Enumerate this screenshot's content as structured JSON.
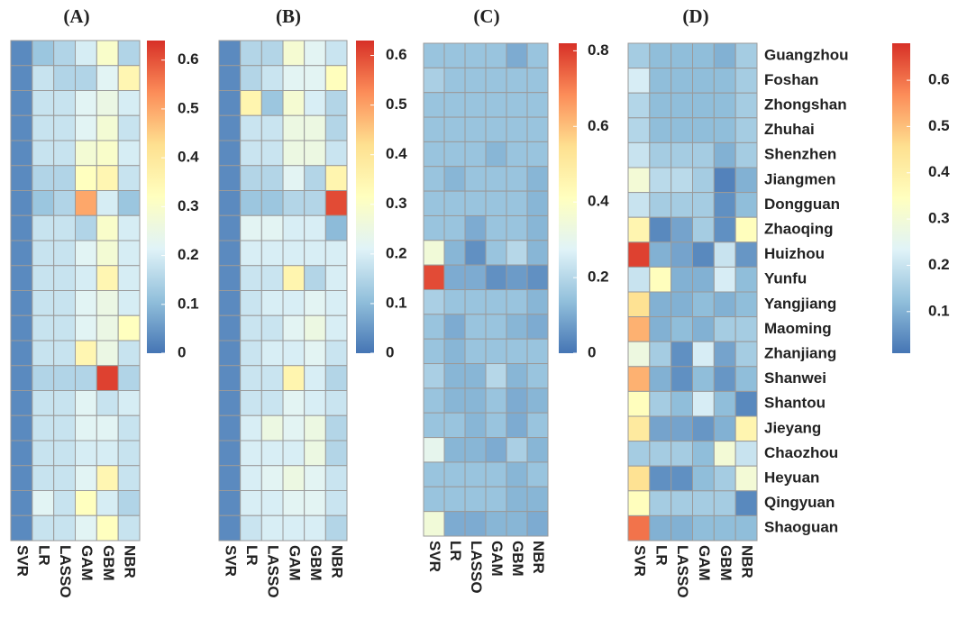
{
  "chart_data": [
    {
      "type": "heatmap",
      "title": "(A)",
      "columns": [
        "SVR",
        "LR",
        "LASSO",
        "GAM",
        "GBM",
        "NBR"
      ],
      "values": [
        [
          0.03,
          0.12,
          0.15,
          0.2,
          0.3,
          0.15
        ],
        [
          0.03,
          0.18,
          0.15,
          0.15,
          0.22,
          0.35
        ],
        [
          0.03,
          0.18,
          0.18,
          0.22,
          0.25,
          0.2
        ],
        [
          0.03,
          0.18,
          0.18,
          0.22,
          0.28,
          0.18
        ],
        [
          0.03,
          0.18,
          0.18,
          0.28,
          0.3,
          0.2
        ],
        [
          0.03,
          0.15,
          0.15,
          0.32,
          0.35,
          0.18
        ],
        [
          0.03,
          0.12,
          0.15,
          0.5,
          0.2,
          0.12
        ],
        [
          0.03,
          0.18,
          0.18,
          0.15,
          0.3,
          0.2
        ],
        [
          0.03,
          0.18,
          0.18,
          0.22,
          0.28,
          0.2
        ],
        [
          0.03,
          0.18,
          0.18,
          0.2,
          0.35,
          0.2
        ],
        [
          0.03,
          0.18,
          0.18,
          0.22,
          0.25,
          0.2
        ],
        [
          0.03,
          0.18,
          0.18,
          0.22,
          0.25,
          0.32
        ],
        [
          0.03,
          0.18,
          0.18,
          0.35,
          0.25,
          0.18
        ],
        [
          0.03,
          0.15,
          0.15,
          0.15,
          0.62,
          0.15
        ],
        [
          0.03,
          0.18,
          0.18,
          0.22,
          0.18,
          0.2
        ],
        [
          0.03,
          0.18,
          0.18,
          0.22,
          0.22,
          0.18
        ],
        [
          0.03,
          0.18,
          0.18,
          0.2,
          0.2,
          0.18
        ],
        [
          0.03,
          0.18,
          0.18,
          0.22,
          0.35,
          0.18
        ],
        [
          0.03,
          0.22,
          0.18,
          0.32,
          0.2,
          0.15
        ],
        [
          0.03,
          0.18,
          0.18,
          0.22,
          0.32,
          0.18
        ]
      ],
      "zlim": [
        0,
        0.64
      ],
      "zticks": [
        0,
        0.1,
        0.2,
        0.3,
        0.4,
        0.5,
        0.6
      ],
      "colormap": [
        "#4575b4",
        "#91bfdb",
        "#e0f3f8",
        "#ffffbf",
        "#fee090",
        "#fc8d59",
        "#d73027"
      ]
    },
    {
      "type": "heatmap",
      "title": "(B)",
      "columns": [
        "SVR",
        "LR",
        "LASSO",
        "GAM",
        "GBM",
        "NBR"
      ],
      "values": [
        [
          0.03,
          0.15,
          0.15,
          0.28,
          0.22,
          0.18
        ],
        [
          0.03,
          0.15,
          0.18,
          0.22,
          0.22,
          0.32
        ],
        [
          0.03,
          0.35,
          0.12,
          0.28,
          0.2,
          0.15
        ],
        [
          0.03,
          0.18,
          0.18,
          0.25,
          0.25,
          0.15
        ],
        [
          0.03,
          0.18,
          0.18,
          0.25,
          0.25,
          0.18
        ],
        [
          0.03,
          0.15,
          0.15,
          0.22,
          0.15,
          0.35
        ],
        [
          0.03,
          0.12,
          0.12,
          0.15,
          0.15,
          0.6
        ],
        [
          0.03,
          0.22,
          0.22,
          0.2,
          0.2,
          0.1
        ],
        [
          0.03,
          0.2,
          0.2,
          0.2,
          0.2,
          0.2
        ],
        [
          0.03,
          0.18,
          0.18,
          0.35,
          0.15,
          0.2
        ],
        [
          0.03,
          0.18,
          0.2,
          0.2,
          0.22,
          0.2
        ],
        [
          0.03,
          0.18,
          0.18,
          0.22,
          0.25,
          0.2
        ],
        [
          0.03,
          0.18,
          0.2,
          0.2,
          0.22,
          0.18
        ],
        [
          0.03,
          0.18,
          0.18,
          0.35,
          0.2,
          0.15
        ],
        [
          0.03,
          0.18,
          0.18,
          0.22,
          0.2,
          0.18
        ],
        [
          0.03,
          0.2,
          0.25,
          0.22,
          0.25,
          0.15
        ],
        [
          0.03,
          0.2,
          0.2,
          0.2,
          0.25,
          0.15
        ],
        [
          0.03,
          0.2,
          0.22,
          0.25,
          0.22,
          0.18
        ],
        [
          0.03,
          0.2,
          0.2,
          0.22,
          0.22,
          0.18
        ],
        [
          0.03,
          0.18,
          0.2,
          0.2,
          0.2,
          0.15
        ]
      ],
      "zlim": [
        0,
        0.63
      ],
      "zticks": [
        0,
        0.1,
        0.2,
        0.3,
        0.4,
        0.5,
        0.6
      ],
      "colormap": [
        "#4575b4",
        "#91bfdb",
        "#e0f3f8",
        "#ffffbf",
        "#fee090",
        "#fc8d59",
        "#d73027"
      ]
    },
    {
      "type": "heatmap",
      "title": "(C)",
      "columns": [
        "SVR",
        "LR",
        "LASSO",
        "GAM",
        "GBM",
        "NBR"
      ],
      "values": [
        [
          0.15,
          0.15,
          0.15,
          0.15,
          0.1,
          0.15
        ],
        [
          0.18,
          0.15,
          0.15,
          0.15,
          0.15,
          0.15
        ],
        [
          0.15,
          0.15,
          0.15,
          0.15,
          0.15,
          0.15
        ],
        [
          0.15,
          0.15,
          0.15,
          0.15,
          0.15,
          0.15
        ],
        [
          0.15,
          0.15,
          0.15,
          0.12,
          0.15,
          0.15
        ],
        [
          0.15,
          0.12,
          0.15,
          0.15,
          0.15,
          0.12
        ],
        [
          0.15,
          0.15,
          0.15,
          0.15,
          0.15,
          0.12
        ],
        [
          0.15,
          0.15,
          0.1,
          0.15,
          0.15,
          0.12
        ],
        [
          0.35,
          0.12,
          0.05,
          0.15,
          0.2,
          0.12
        ],
        [
          0.78,
          0.1,
          0.1,
          0.05,
          0.07,
          0.05
        ],
        [
          0.18,
          0.15,
          0.15,
          0.15,
          0.15,
          0.12
        ],
        [
          0.15,
          0.1,
          0.15,
          0.15,
          0.12,
          0.1
        ],
        [
          0.15,
          0.12,
          0.15,
          0.15,
          0.15,
          0.15
        ],
        [
          0.18,
          0.12,
          0.12,
          0.2,
          0.12,
          0.15
        ],
        [
          0.15,
          0.12,
          0.12,
          0.15,
          0.1,
          0.12
        ],
        [
          0.15,
          0.15,
          0.12,
          0.15,
          0.1,
          0.15
        ],
        [
          0.3,
          0.12,
          0.12,
          0.1,
          0.18,
          0.12
        ],
        [
          0.15,
          0.15,
          0.15,
          0.15,
          0.12,
          0.15
        ],
        [
          0.15,
          0.15,
          0.15,
          0.15,
          0.12,
          0.12
        ],
        [
          0.35,
          0.1,
          0.1,
          0.12,
          0.12,
          0.1
        ]
      ],
      "zlim": [
        0,
        0.82
      ],
      "zticks": [
        0,
        0.2,
        0.4,
        0.6,
        0.8
      ],
      "colormap": [
        "#4575b4",
        "#91bfdb",
        "#e0f3f8",
        "#ffffbf",
        "#fee090",
        "#fc8d59",
        "#d73027"
      ]
    },
    {
      "type": "heatmap",
      "title": "(D)",
      "columns": [
        "SVR",
        "LR",
        "LASSO",
        "GAM",
        "GBM",
        "NBR"
      ],
      "rows": [
        "Guangzhou",
        "Foshan",
        "Zhongshan",
        "Zhuhai",
        "Shenzhen",
        "Jiangmen",
        "Dongguan",
        "Zhaoqing",
        "Huizhou",
        "Yunfu",
        "Yangjiang",
        "Maoming",
        "Zhanjiang",
        "Shanwei",
        "Shantou",
        "Jieyang",
        "Chaozhou",
        "Heyuan",
        "Qingyuan",
        "Shaoguan"
      ],
      "values": [
        [
          0.15,
          0.12,
          0.12,
          0.12,
          0.1,
          0.15
        ],
        [
          0.22,
          0.12,
          0.12,
          0.12,
          0.12,
          0.15
        ],
        [
          0.17,
          0.12,
          0.12,
          0.12,
          0.12,
          0.15
        ],
        [
          0.17,
          0.12,
          0.12,
          0.12,
          0.12,
          0.15
        ],
        [
          0.2,
          0.15,
          0.15,
          0.15,
          0.1,
          0.15
        ],
        [
          0.3,
          0.18,
          0.18,
          0.15,
          0.03,
          0.1
        ],
        [
          0.2,
          0.15,
          0.15,
          0.15,
          0.05,
          0.12
        ],
        [
          0.38,
          0.04,
          0.08,
          0.15,
          0.05,
          0.35
        ],
        [
          0.66,
          0.1,
          0.08,
          0.04,
          0.2,
          0.06
        ],
        [
          0.2,
          0.35,
          0.1,
          0.1,
          0.22,
          0.12
        ],
        [
          0.45,
          0.1,
          0.1,
          0.12,
          0.1,
          0.12
        ],
        [
          0.52,
          0.1,
          0.12,
          0.1,
          0.15,
          0.15
        ],
        [
          0.28,
          0.15,
          0.05,
          0.22,
          0.08,
          0.15
        ],
        [
          0.52,
          0.1,
          0.05,
          0.12,
          0.06,
          0.12
        ],
        [
          0.35,
          0.15,
          0.12,
          0.22,
          0.12,
          0.04
        ],
        [
          0.42,
          0.08,
          0.08,
          0.06,
          0.1,
          0.38
        ],
        [
          0.15,
          0.15,
          0.15,
          0.12,
          0.3,
          0.2
        ],
        [
          0.45,
          0.05,
          0.05,
          0.12,
          0.15,
          0.3
        ],
        [
          0.35,
          0.15,
          0.15,
          0.15,
          0.15,
          0.04
        ],
        [
          0.6,
          0.1,
          0.1,
          0.12,
          0.12,
          0.12
        ]
      ],
      "zlim": [
        0.01,
        0.68
      ],
      "zticks": [
        0.1,
        0.2,
        0.3,
        0.4,
        0.5,
        0.6
      ],
      "colormap": [
        "#4575b4",
        "#91bfdb",
        "#e0f3f8",
        "#ffffbf",
        "#fee090",
        "#fc8d59",
        "#d73027"
      ]
    }
  ]
}
